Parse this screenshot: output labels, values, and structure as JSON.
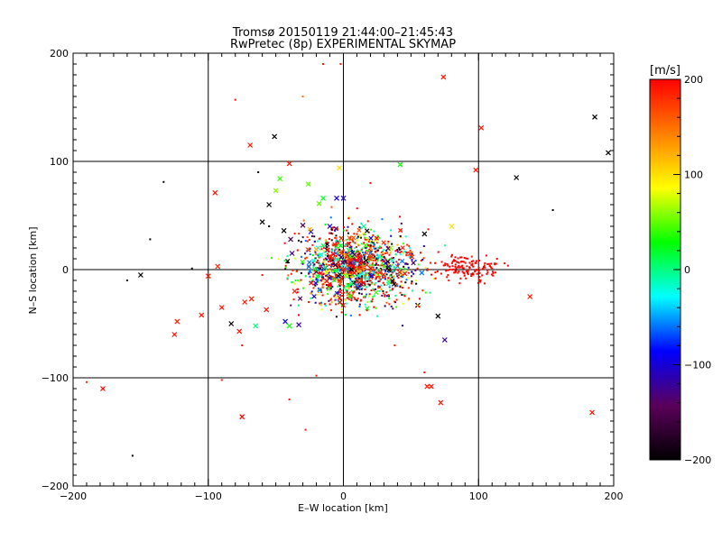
{
  "chart_data": {
    "type": "scatter",
    "title": "Tromsø 20150119 21:44:00–21:45:43",
    "subtitle": "RwPretec (8p) EXPERIMENTAL SKYMAP",
    "xlabel": "E–W location [km]",
    "ylabel": "N–S location [km]",
    "xlim": [
      -200,
      200
    ],
    "ylim": [
      -200,
      200
    ],
    "xticks": [
      -200,
      -100,
      0,
      100,
      200
    ],
    "yticks": [
      -200,
      -100,
      0,
      100,
      200
    ],
    "grid": true,
    "colorbar": {
      "label": "[m/s]",
      "min": -200,
      "max": 200,
      "ticks": [
        -200,
        -100,
        0,
        100,
        200
      ],
      "stops": [
        "#000000",
        "#5a005a",
        "#0000ff",
        "#00ffff",
        "#00ff00",
        "#ffff00",
        "#ff7f00",
        "#ff0000"
      ]
    },
    "marker_types": {
      "x": "cross (strong echo)",
      "dot": "small dot (weak echo)"
    },
    "points": [
      [
        -190,
        -104,
        180,
        "dot"
      ],
      [
        -178,
        -110,
        200,
        "x"
      ],
      [
        -160,
        -10,
        -200,
        "dot"
      ],
      [
        -156,
        -172,
        -200,
        "dot"
      ],
      [
        -150,
        -5,
        -200,
        "x"
      ],
      [
        -143,
        28,
        -200,
        "dot"
      ],
      [
        -133,
        81,
        -200,
        "dot"
      ],
      [
        -123,
        -48,
        190,
        "x"
      ],
      [
        -125,
        -60,
        190,
        "x"
      ],
      [
        -112,
        1,
        -200,
        "dot"
      ],
      [
        -105,
        -42,
        190,
        "x"
      ],
      [
        -100,
        -6,
        190,
        "x"
      ],
      [
        -95,
        71,
        190,
        "x"
      ],
      [
        -93,
        3,
        180,
        "x"
      ],
      [
        -90,
        -35,
        190,
        "x"
      ],
      [
        -83,
        -50,
        -200,
        "x"
      ],
      [
        -80,
        157,
        200,
        "dot"
      ],
      [
        -77,
        -57,
        190,
        "x"
      ],
      [
        -75,
        -136,
        200,
        "x"
      ],
      [
        -73,
        -30,
        190,
        "x"
      ],
      [
        -69,
        115,
        190,
        "x"
      ],
      [
        -68,
        -27,
        190,
        "x"
      ],
      [
        -65,
        -52,
        0,
        "x"
      ],
      [
        -63,
        90,
        -200,
        "dot"
      ],
      [
        -60,
        44,
        -200,
        "x"
      ],
      [
        -57,
        -37,
        190,
        "x"
      ],
      [
        -55,
        60,
        -200,
        "x"
      ],
      [
        -51,
        123,
        -200,
        "x"
      ],
      [
        -50,
        73,
        60,
        "x"
      ],
      [
        -47,
        84,
        40,
        "x"
      ],
      [
        -44,
        36,
        -200,
        "x"
      ],
      [
        -40,
        98,
        190,
        "x"
      ],
      [
        -43,
        -48,
        -100,
        "x"
      ],
      [
        -40,
        -52,
        30,
        "x"
      ],
      [
        -39,
        28,
        -150,
        "x"
      ],
      [
        -38,
        15,
        -120,
        "x"
      ],
      [
        -36,
        -20,
        190,
        "x"
      ],
      [
        -33,
        -51,
        -120,
        "x"
      ],
      [
        -30,
        41,
        -150,
        "x"
      ],
      [
        -26,
        79,
        50,
        "x"
      ],
      [
        -24,
        35,
        -100,
        "x"
      ],
      [
        -20,
        -2,
        -180,
        "x"
      ],
      [
        -18,
        61,
        50,
        "x"
      ],
      [
        -15,
        66,
        20,
        "x"
      ],
      [
        -12,
        18,
        -200,
        "x"
      ],
      [
        -10,
        40,
        -100,
        "x"
      ],
      [
        -8,
        9,
        -150,
        "x"
      ],
      [
        -5,
        66,
        -100,
        "x"
      ],
      [
        -3,
        94,
        100,
        "x"
      ],
      [
        0,
        66,
        -100,
        "x"
      ],
      [
        2,
        8,
        -200,
        "x"
      ],
      [
        5,
        2,
        170,
        "x"
      ],
      [
        10,
        -10,
        -200,
        "x"
      ],
      [
        15,
        40,
        0,
        "x"
      ],
      [
        20,
        20,
        140,
        "x"
      ],
      [
        25,
        -5,
        80,
        "x"
      ],
      [
        30,
        8,
        190,
        "x"
      ],
      [
        35,
        20,
        60,
        "x"
      ],
      [
        40,
        3,
        -50,
        "x"
      ],
      [
        42,
        97,
        30,
        "x"
      ],
      [
        50,
        15,
        120,
        "x"
      ],
      [
        55,
        -33,
        -200,
        "x"
      ],
      [
        58,
        -3,
        -60,
        "x"
      ],
      [
        60,
        33,
        -200,
        "x"
      ],
      [
        62,
        -108,
        190,
        "x"
      ],
      [
        65,
        -108,
        190,
        "x"
      ],
      [
        70,
        -43,
        -200,
        "x"
      ],
      [
        72,
        -123,
        190,
        "x"
      ],
      [
        74,
        178,
        190,
        "x"
      ],
      [
        75,
        -65,
        -120,
        "x"
      ],
      [
        80,
        40,
        100,
        "x"
      ],
      [
        98,
        92,
        190,
        "x"
      ],
      [
        102,
        131,
        190,
        "x"
      ],
      [
        110,
        1,
        190,
        "dot"
      ],
      [
        128,
        85,
        -200,
        "x"
      ],
      [
        138,
        -25,
        190,
        "x"
      ],
      [
        155,
        55,
        -200,
        "dot"
      ],
      [
        184,
        -132,
        190,
        "x"
      ],
      [
        186,
        141,
        -200,
        "x"
      ],
      [
        196,
        108,
        -200,
        "x"
      ],
      [
        -75,
        -70,
        190,
        "dot"
      ],
      [
        -55,
        40,
        -200,
        "dot"
      ],
      [
        -20,
        -98,
        190,
        "dot"
      ],
      [
        -15,
        190,
        190,
        "dot"
      ],
      [
        -30,
        160,
        150,
        "dot"
      ],
      [
        20,
        80,
        190,
        "dot"
      ],
      [
        -40,
        -120,
        190,
        "dot"
      ],
      [
        60,
        -95,
        190,
        "dot"
      ],
      [
        38,
        -70,
        190,
        "dot"
      ],
      [
        -28,
        -148,
        190,
        "dot"
      ],
      [
        78,
        -10,
        190,
        "dot"
      ],
      [
        95,
        12,
        190,
        "dot"
      ],
      [
        -90,
        -102,
        190,
        "dot"
      ],
      [
        -60,
        -5,
        190,
        "dot"
      ],
      [
        -2,
        190,
        190,
        "dot"
      ],
      [
        18,
        -30,
        60,
        "dot"
      ]
    ]
  }
}
